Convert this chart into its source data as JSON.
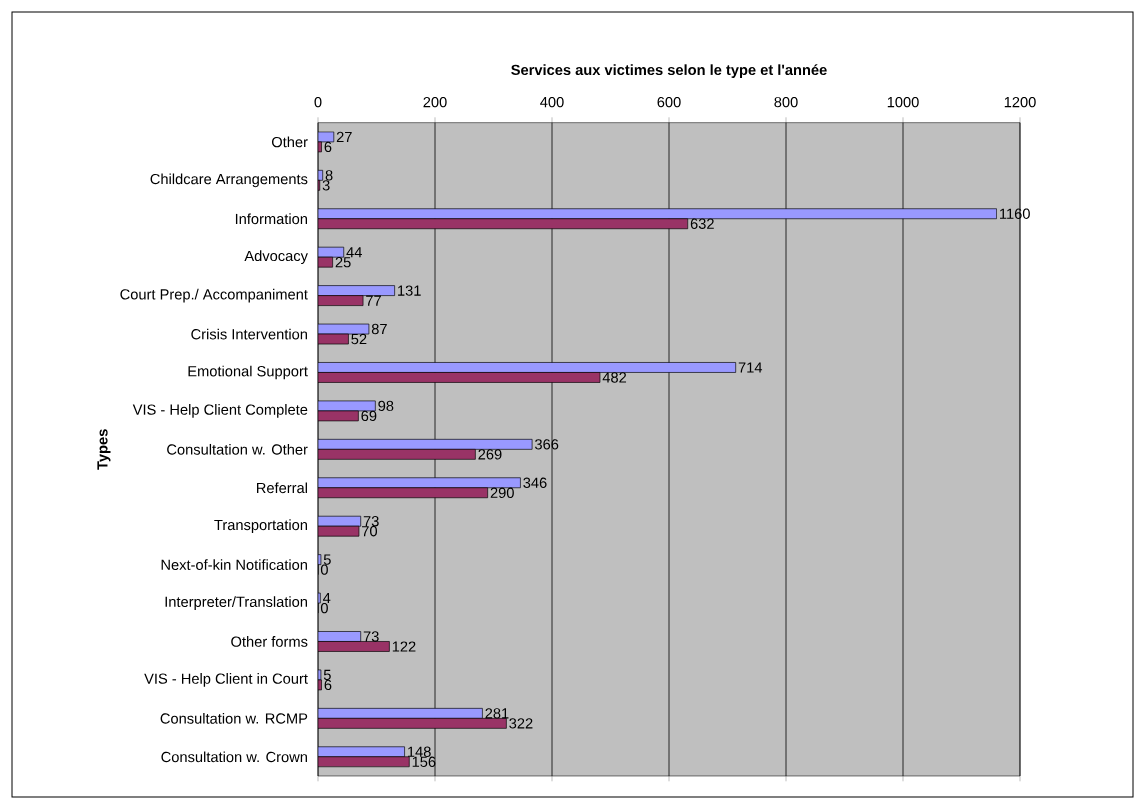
{
  "chart_data": {
    "type": "bar",
    "orientation": "horizontal",
    "title": "Services aux victimes selon le type et l'année",
    "ylabel": "Types",
    "categories": [
      "Other",
      "Childcare Arrangements",
      "Information",
      "Advocacy",
      "Court Prep./ Accompaniment",
      "Crisis Intervention",
      "Emotional Support",
      "VIS - Help Client Complete",
      "Consultation w. Other",
      "Referral",
      "Transportation",
      "Next-of-kin Notification",
      "Interpreter/Translation",
      "Other forms",
      "VIS - Help Client in Court",
      "Consultation w. RCMP",
      "Consultation w. Crown"
    ],
    "series": [
      {
        "color": "#9999ff",
        "values": [
          27,
          8,
          1160,
          44,
          131,
          87,
          714,
          98,
          366,
          346,
          73,
          5,
          4,
          73,
          5,
          281,
          148
        ]
      },
      {
        "color": "#993366",
        "values": [
          6,
          3,
          632,
          25,
          77,
          52,
          482,
          69,
          269,
          290,
          70,
          0,
          0,
          122,
          6,
          322,
          156
        ]
      }
    ],
    "xlim": [
      0,
      1200
    ],
    "xticks": [
      0,
      200,
      400,
      600,
      800,
      1000,
      1200
    ],
    "grid": "x",
    "data_labels": true
  }
}
